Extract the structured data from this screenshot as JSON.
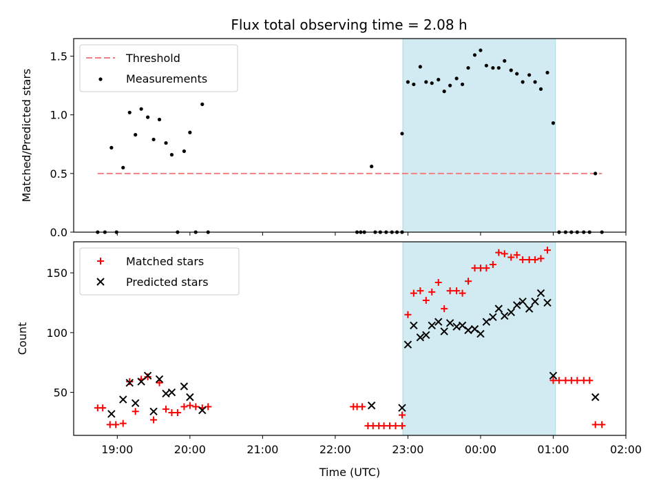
{
  "title": "Flux total observing time = 2.08 h",
  "colors": {
    "threshold": "#f08080",
    "measurements": "#000000",
    "matched": "#ff0000",
    "predicted": "#000000",
    "highlight": "#add8e6"
  },
  "chart_data": [
    {
      "type": "scatter",
      "ylabel": "Matched/Predicted stars",
      "xlim": [
        -0.6,
        7.0
      ],
      "ylim": [
        0,
        1.65
      ],
      "x_ticks": [
        0,
        1,
        2,
        3,
        4,
        5,
        6,
        7
      ],
      "y_ticks": [
        0.0,
        0.5,
        1.0,
        1.5
      ],
      "y_tick_labels": [
        "0.0",
        "0.5",
        "1.0",
        "1.5"
      ],
      "highlight_span": [
        3.93,
        6.03
      ],
      "legend": {
        "position": "upper-left",
        "entries": [
          "Threshold",
          "Measurements"
        ]
      },
      "threshold": {
        "name": "Threshold",
        "y": 0.5,
        "x_range": [
          -0.27,
          6.67
        ]
      },
      "measurements": {
        "name": "Measurements",
        "x": [
          -0.27,
          -0.17,
          -0.08,
          -0.01,
          0.08,
          0.17,
          0.25,
          0.33,
          0.42,
          0.5,
          0.58,
          0.67,
          0.75,
          0.83,
          0.92,
          1.0,
          1.08,
          1.17,
          1.25,
          3.3,
          3.35,
          3.4,
          3.5,
          3.55,
          3.62,
          3.7,
          3.78,
          3.85,
          3.92,
          3.92,
          4.0,
          4.08,
          4.17,
          4.25,
          4.33,
          4.42,
          4.5,
          4.58,
          4.67,
          4.75,
          4.83,
          4.92,
          5.0,
          5.08,
          5.17,
          5.25,
          5.33,
          5.42,
          5.5,
          5.58,
          5.67,
          5.75,
          5.83,
          5.92,
          6.0,
          6.08,
          6.17,
          6.25,
          6.33,
          6.42,
          6.5,
          6.58,
          6.67
        ],
        "y": [
          0,
          0,
          0.72,
          0,
          0.55,
          1.02,
          0.83,
          1.05,
          0.98,
          0.79,
          0.96,
          0.76,
          0.66,
          0,
          0.69,
          0.85,
          0,
          1.09,
          0,
          0,
          0,
          0,
          0.56,
          0,
          0,
          0,
          0,
          0,
          0,
          0.84,
          1.28,
          1.26,
          1.41,
          1.28,
          1.27,
          1.3,
          1.2,
          1.25,
          1.31,
          1.26,
          1.4,
          1.51,
          1.55,
          1.42,
          1.4,
          1.4,
          1.46,
          1.38,
          1.35,
          1.28,
          1.34,
          1.28,
          1.22,
          1.36,
          0.93,
          0,
          0,
          0,
          0,
          0,
          0,
          0.5,
          0
        ]
      }
    },
    {
      "type": "scatter",
      "xlabel": "Time (UTC)",
      "ylabel": "Count",
      "xlim": [
        -0.6,
        7.0
      ],
      "ylim": [
        14,
        176
      ],
      "x_ticks": [
        0,
        1,
        2,
        3,
        4,
        5,
        6,
        7
      ],
      "x_tick_labels": [
        "19:00",
        "20:00",
        "21:00",
        "22:00",
        "23:00",
        "00:00",
        "01:00",
        "02:00"
      ],
      "y_ticks": [
        50,
        100,
        150
      ],
      "y_tick_labels": [
        "50",
        "100",
        "150"
      ],
      "highlight_span": [
        3.93,
        6.03
      ],
      "legend": {
        "position": "upper-left",
        "entries": [
          "Matched stars",
          "Predicted stars"
        ]
      },
      "series": [
        {
          "name": "Matched stars",
          "marker": "plus",
          "x": [
            -0.27,
            -0.2,
            -0.1,
            -0.02,
            0.08,
            0.17,
            0.25,
            0.33,
            0.42,
            0.5,
            0.58,
            0.67,
            0.75,
            0.83,
            0.92,
            1.0,
            1.08,
            1.17,
            1.25,
            3.25,
            3.3,
            3.37,
            3.45,
            3.52,
            3.6,
            3.67,
            3.75,
            3.83,
            3.92,
            3.92,
            4.0,
            4.08,
            4.17,
            4.25,
            4.33,
            4.42,
            4.5,
            4.58,
            4.67,
            4.75,
            4.83,
            4.92,
            5.0,
            5.08,
            5.17,
            5.25,
            5.33,
            5.42,
            5.5,
            5.58,
            5.67,
            5.75,
            5.83,
            5.92,
            6.0,
            6.08,
            6.17,
            6.25,
            6.33,
            6.42,
            6.5,
            6.58,
            6.67
          ],
          "y": [
            37,
            37,
            23,
            23,
            24,
            59,
            34,
            61,
            63,
            27,
            58,
            36,
            33,
            33,
            38,
            39,
            38,
            37,
            38,
            38,
            38,
            38,
            22,
            22,
            22,
            22,
            22,
            22,
            22,
            31,
            115,
            133,
            135,
            127,
            134,
            142,
            120,
            135,
            135,
            133,
            143,
            154,
            154,
            154,
            157,
            167,
            166,
            163,
            165,
            161,
            161,
            161,
            162,
            169,
            60,
            60,
            60,
            60,
            60,
            60,
            60,
            23,
            23
          ]
        },
        {
          "name": "Predicted stars",
          "marker": "x",
          "x": [
            -0.08,
            0.08,
            0.17,
            0.25,
            0.33,
            0.42,
            0.5,
            0.58,
            0.67,
            0.75,
            0.92,
            1.0,
            1.17,
            3.5,
            3.92,
            4.0,
            4.08,
            4.17,
            4.25,
            4.33,
            4.42,
            4.5,
            4.58,
            4.67,
            4.75,
            4.83,
            4.92,
            5.0,
            5.08,
            5.17,
            5.25,
            5.33,
            5.42,
            5.5,
            5.58,
            5.67,
            5.75,
            5.83,
            5.92,
            6.0,
            6.58
          ],
          "y": [
            32,
            44,
            58,
            41,
            59,
            64,
            34,
            61,
            49,
            50,
            55,
            46,
            35,
            39,
            37,
            90,
            106,
            96,
            98,
            106,
            109,
            101,
            108,
            105,
            106,
            102,
            103,
            99,
            109,
            113,
            120,
            114,
            117,
            123,
            126,
            120,
            126,
            133,
            125,
            64,
            46
          ]
        }
      ]
    }
  ]
}
